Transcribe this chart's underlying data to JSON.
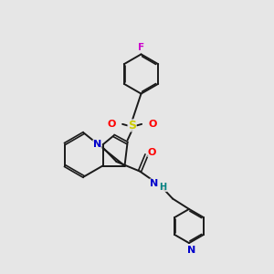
{
  "background_color": "#e6e6e6",
  "bond_color": "#1a1a1a",
  "N_color": "#0000cc",
  "O_color": "#ff0000",
  "S_color": "#cccc00",
  "F_color": "#cc00cc",
  "H_color": "#008080",
  "figsize": [
    3.0,
    3.0
  ],
  "dpi": 100,
  "xlim": [
    0,
    10
  ],
  "ylim": [
    0,
    10
  ]
}
